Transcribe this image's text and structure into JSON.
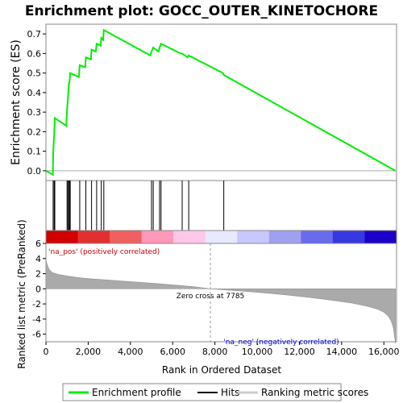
{
  "chart_data": [
    {
      "type": "line",
      "title": "Enrichment plot: GOCC_OUTER_KINETOCHORE",
      "ylabel": "Enrichment score (ES)",
      "xlim": [
        0,
        16600
      ],
      "ylim": [
        -0.05,
        0.75
      ],
      "yticks": [
        "0.0",
        "0.1",
        "0.2",
        "0.3",
        "0.4",
        "0.5",
        "0.6",
        "0.7"
      ],
      "ytick_values": [
        0.0,
        0.1,
        0.2,
        0.3,
        0.4,
        0.5,
        0.6,
        0.7
      ],
      "color": "#00ee00",
      "series": [
        {
          "name": "Enrichment profile",
          "x": [
            0,
            330,
            340,
            360,
            390,
            420,
            960,
            1000,
            1040,
            1080,
            1120,
            1150,
            1560,
            1600,
            1860,
            1890,
            2130,
            2160,
            2360,
            2400,
            2590,
            2620,
            2710,
            2740,
            4940,
            5000,
            5080,
            5330,
            5380,
            5450,
            6380,
            6450,
            6700,
            6760,
            8380,
            8420,
            16550
          ],
          "y": [
            0.0,
            -0.02,
            0.08,
            0.13,
            0.18,
            0.27,
            0.23,
            0.31,
            0.37,
            0.44,
            0.46,
            0.5,
            0.48,
            0.54,
            0.53,
            0.58,
            0.57,
            0.62,
            0.61,
            0.65,
            0.64,
            0.68,
            0.67,
            0.72,
            0.59,
            0.61,
            0.63,
            0.61,
            0.63,
            0.65,
            0.6,
            0.6,
            0.58,
            0.59,
            0.5,
            0.49,
            0.0
          ]
        }
      ]
    },
    {
      "type": "bar",
      "title": "",
      "series": [
        {
          "name": "Hits",
          "x": [
            340,
            390,
            420,
            1000,
            1040,
            1080,
            1120,
            1150,
            1600,
            1890,
            2160,
            2400,
            2620,
            2740,
            5000,
            5080,
            5380,
            5450,
            6450,
            6760,
            8420
          ]
        }
      ]
    },
    {
      "type": "area",
      "title": "",
      "xlabel": "Rank in Ordered Dataset",
      "ylabel": "Ranked list metric (PreRanked)",
      "xlim": [
        0,
        16600
      ],
      "ylim": [
        -7,
        6
      ],
      "xticks": [
        "0",
        "2,000",
        "4,000",
        "6,000",
        "8,000",
        "10,000",
        "12,000",
        "14,000",
        "16,000"
      ],
      "xtick_values": [
        0,
        2000,
        4000,
        6000,
        8000,
        10000,
        12000,
        14000,
        16000
      ],
      "yticks": [
        "-6",
        "-4",
        "-2",
        "0",
        "2",
        "4",
        "6"
      ],
      "ytick_values": [
        -6,
        -4,
        -2,
        0,
        2,
        4,
        6
      ],
      "series": [
        {
          "name": "Ranking metric scores",
          "x": [
            0,
            60,
            150,
            300,
            600,
            1000,
            1500,
            2000,
            3000,
            4000,
            5000,
            6000,
            7000,
            7785,
            8500,
            9500,
            10500,
            11500,
            12500,
            13500,
            14500,
            15200,
            15700,
            16000,
            16200,
            16350,
            16450,
            16550
          ],
          "y": [
            3.8,
            3.2,
            2.6,
            2.15,
            1.9,
            1.7,
            1.5,
            1.35,
            1.15,
            0.95,
            0.75,
            0.52,
            0.28,
            0.0,
            -0.15,
            -0.35,
            -0.58,
            -0.85,
            -1.15,
            -1.5,
            -1.9,
            -2.3,
            -2.7,
            -3.1,
            -3.6,
            -4.3,
            -5.2,
            -7.2
          ]
        }
      ],
      "annotations": [
        "'na_pos' (positively correlated)",
        "Zero cross at 7785",
        "'na_neg' (negatively correlated)"
      ],
      "annotation_colors": [
        "#cc0000",
        "#000000",
        "#0000cc"
      ]
    }
  ],
  "legend": {
    "items": [
      {
        "label": "Enrichment profile",
        "color": "#00ee00"
      },
      {
        "label": "Hits",
        "color": "#000000"
      },
      {
        "label": "Ranking metric scores",
        "color": "#cccccc"
      }
    ]
  },
  "heatmap_colors": [
    "#d00000",
    "#e23030",
    "#f06060",
    "#ff99bb",
    "#ffc8e8",
    "#e8e8ff",
    "#c8c8ff",
    "#a0a0f0",
    "#6a6aec",
    "#3838e0",
    "#1a00c8"
  ]
}
